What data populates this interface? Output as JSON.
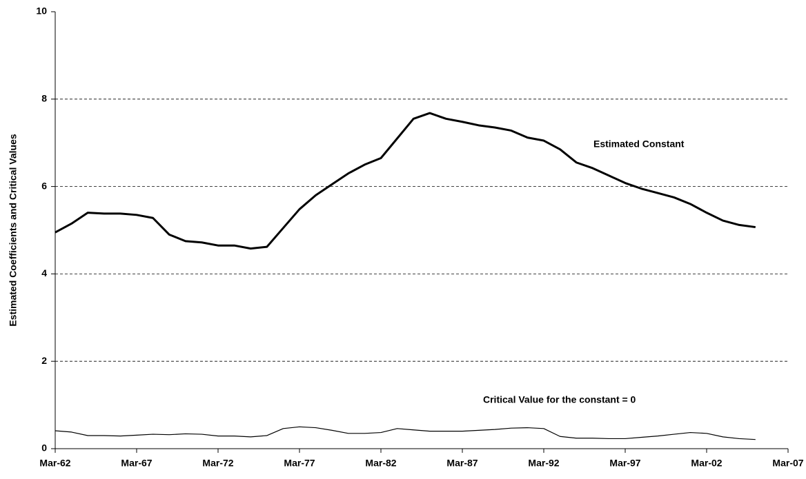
{
  "chart_data": {
    "type": "line",
    "y_label": "Estimated Coefficients and Critical Values",
    "annotations": [
      "Estimated Constant",
      "Critical Value for the constant = 0"
    ],
    "x": [
      "1962-03",
      "1963-03",
      "1964-03",
      "1965-03",
      "1966-03",
      "1967-03",
      "1968-03",
      "1969-03",
      "1970-03",
      "1971-03",
      "1972-03",
      "1973-03",
      "1974-03",
      "1975-03",
      "1976-03",
      "1977-03",
      "1978-03",
      "1979-03",
      "1980-03",
      "1981-03",
      "1982-03",
      "1983-03",
      "1984-03",
      "1985-03",
      "1986-03",
      "1987-03",
      "1988-03",
      "1989-03",
      "1990-03",
      "1991-03",
      "1992-03",
      "1993-03",
      "1994-03",
      "1995-03",
      "1996-03",
      "1997-03",
      "1998-03",
      "1999-03",
      "2000-03",
      "2001-03",
      "2002-03",
      "2003-03",
      "2004-03",
      "2005-03"
    ],
    "series": [
      {
        "name": "Estimated Constant",
        "color": "#000000",
        "line_width": 3,
        "values": [
          4.95,
          5.15,
          5.4,
          5.38,
          5.38,
          5.35,
          5.28,
          4.9,
          4.75,
          4.72,
          4.65,
          4.65,
          4.58,
          4.62,
          5.05,
          5.48,
          5.8,
          6.05,
          6.3,
          6.5,
          6.65,
          7.1,
          7.55,
          7.68,
          7.55,
          7.48,
          7.4,
          7.35,
          7.28,
          7.12,
          7.05,
          6.85,
          6.55,
          6.42,
          6.25,
          6.08,
          5.95,
          5.85,
          5.75,
          5.6,
          5.4,
          5.22,
          5.12,
          5.07
        ]
      },
      {
        "name": "Critical Value for the constant = 0",
        "color": "#000000",
        "line_width": 1.2,
        "values": [
          0.41,
          0.38,
          0.3,
          0.3,
          0.29,
          0.31,
          0.33,
          0.32,
          0.34,
          0.33,
          0.29,
          0.29,
          0.27,
          0.3,
          0.46,
          0.5,
          0.48,
          0.42,
          0.35,
          0.35,
          0.37,
          0.46,
          0.43,
          0.4,
          0.4,
          0.4,
          0.42,
          0.44,
          0.47,
          0.48,
          0.46,
          0.28,
          0.24,
          0.24,
          0.23,
          0.23,
          0.26,
          0.29,
          0.33,
          0.37,
          0.35,
          0.27,
          0.23,
          0.21
        ]
      }
    ],
    "xlim": [
      "1962-03",
      "2007-03"
    ],
    "xticks": [
      {
        "value": "1962-03",
        "label": "Mar-62"
      },
      {
        "value": "1967-03",
        "label": "Mar-67"
      },
      {
        "value": "1972-03",
        "label": "Mar-72"
      },
      {
        "value": "1977-03",
        "label": "Mar-77"
      },
      {
        "value": "1982-03",
        "label": "Mar-82"
      },
      {
        "value": "1987-03",
        "label": "Mar-87"
      },
      {
        "value": "1992-03",
        "label": "Mar-92"
      },
      {
        "value": "1997-03",
        "label": "Mar-97"
      },
      {
        "value": "2002-03",
        "label": "Mar-02"
      },
      {
        "value": "2007-03",
        "label": "Mar-07"
      }
    ],
    "ylim": [
      0,
      10
    ],
    "yticks": [
      0,
      2,
      4,
      6,
      8,
      10
    ],
    "grid": true
  }
}
